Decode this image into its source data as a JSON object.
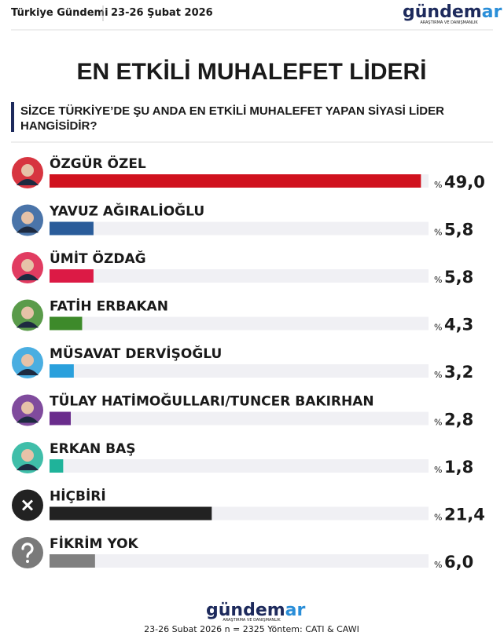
{
  "header": {
    "left": "Türkiye Gündemi",
    "date": "23-26 Şubat 2026",
    "logo_main": "gündem",
    "logo_accent": "ar",
    "logo_tagline": "ARAŞTIRMA VE DANIŞMANLIK"
  },
  "chart_data": {
    "type": "hbar",
    "title": "EN ETKİLİ MUHALEFET LİDERİ",
    "subtitle": "SİZCE TÜRKİYE’DE ŞU ANDA EN ETKİLİ MUHALEFET YAPAN SİYASİ LİDER HANGİSİDİR?",
    "categories": [
      "ÖZGÜR ÖZEL",
      "YAVUZ AĞIRALİOĞLU",
      "ÜMİT ÖZDAĞ",
      "FATİH ERBAKAN",
      "MÜSAVAT DERVİŞOĞLU",
      "TÜLAY HATİMOĞULLARI/TUNCER BAKIRHAN",
      "ERKAN BAŞ",
      "HİÇBİRİ",
      "FİKRİM YOK"
    ],
    "values": [
      49.0,
      5.8,
      5.8,
      4.3,
      3.2,
      2.8,
      1.8,
      21.4,
      6.0
    ],
    "value_labels": [
      "49,0",
      "5,8",
      "5,8",
      "4,3",
      "3,2",
      "2,8",
      "1,8",
      "21,4",
      "6,0"
    ],
    "unit": "%",
    "colors": [
      "#d0121e",
      "#2a5c9a",
      "#dc1a45",
      "#3d8a2a",
      "#2aa0dc",
      "#6a2c8c",
      "#1fb39a",
      "#222222",
      "#808080"
    ],
    "xlim": [
      0,
      50
    ]
  },
  "footer": {
    "note": "23-26 Şubat 2026 n = 2325 Yöntem: CATI & CAWI"
  }
}
